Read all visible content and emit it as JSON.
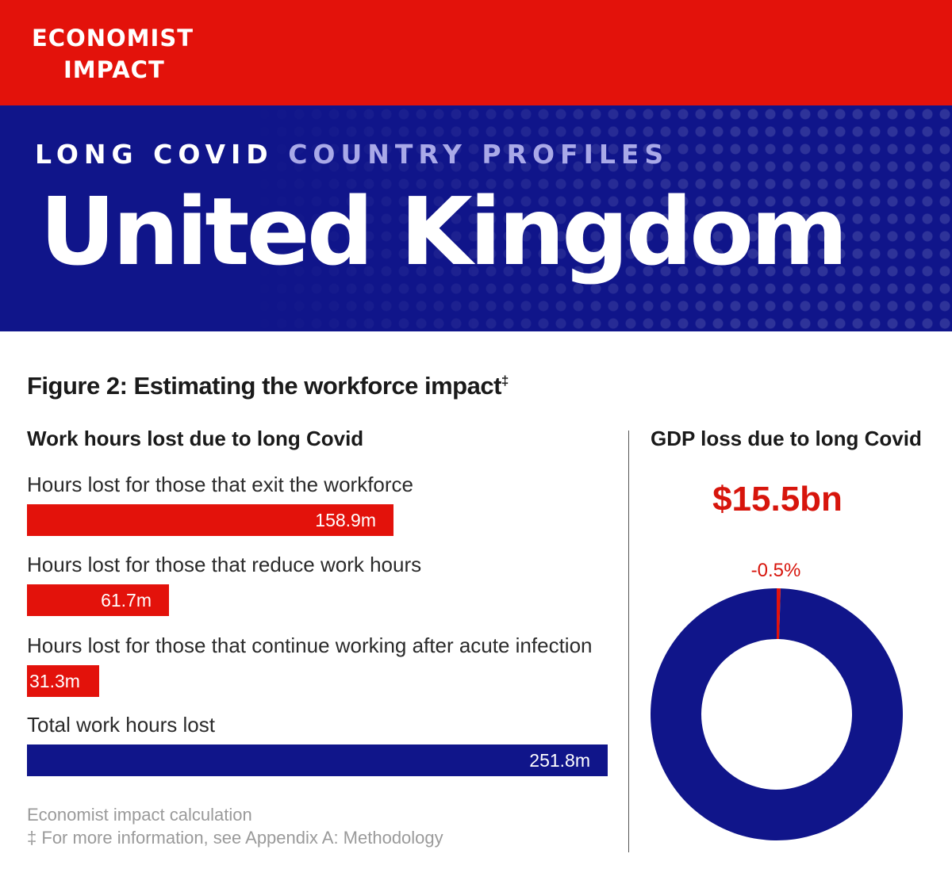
{
  "header": {
    "brand_line1": "ECONOMIST",
    "brand_line2": "IMPACT",
    "kicker_part1": "LONG COVID",
    "kicker_part2": "COUNTRY PROFILES",
    "country": "United Kingdom"
  },
  "figure": {
    "title": "Figure 2: Estimating the workforce impact",
    "title_mark": "‡",
    "left_heading": "Work hours lost due to long Covid",
    "right_heading": "GDP loss due to long Covid",
    "gdp_value": "$15.5bn",
    "source_line1": "Economist impact calculation",
    "footnote_mark": "‡",
    "source_line2": "For more information, see Appendix A: Methodology"
  },
  "colors": {
    "red": "#e3120b",
    "blue": "#10158a",
    "value_red": "#d7150c"
  },
  "chart_data": [
    {
      "type": "bar",
      "title": "Work hours lost due to long Covid",
      "unit": "million hours",
      "categories": [
        "Hours lost for those that exit the workforce",
        "Hours lost for those that reduce work hours",
        "Hours lost for those that continue working after acute infection",
        "Total work hours lost"
      ],
      "values": [
        158.9,
        61.7,
        31.3,
        251.8
      ],
      "value_labels": [
        "158.9m",
        "61.7m",
        "31.3m",
        "251.8m"
      ],
      "colors": [
        "#e3120b",
        "#e3120b",
        "#e3120b",
        "#10158a"
      ]
    },
    {
      "type": "pie",
      "title": "GDP loss due to long Covid",
      "total_label": "$15.5bn",
      "slices": [
        {
          "label": "-0.5%",
          "value": 0.5,
          "color": "#e3120b"
        },
        {
          "label": "",
          "value": 99.5,
          "color": "#10158a"
        }
      ]
    }
  ]
}
